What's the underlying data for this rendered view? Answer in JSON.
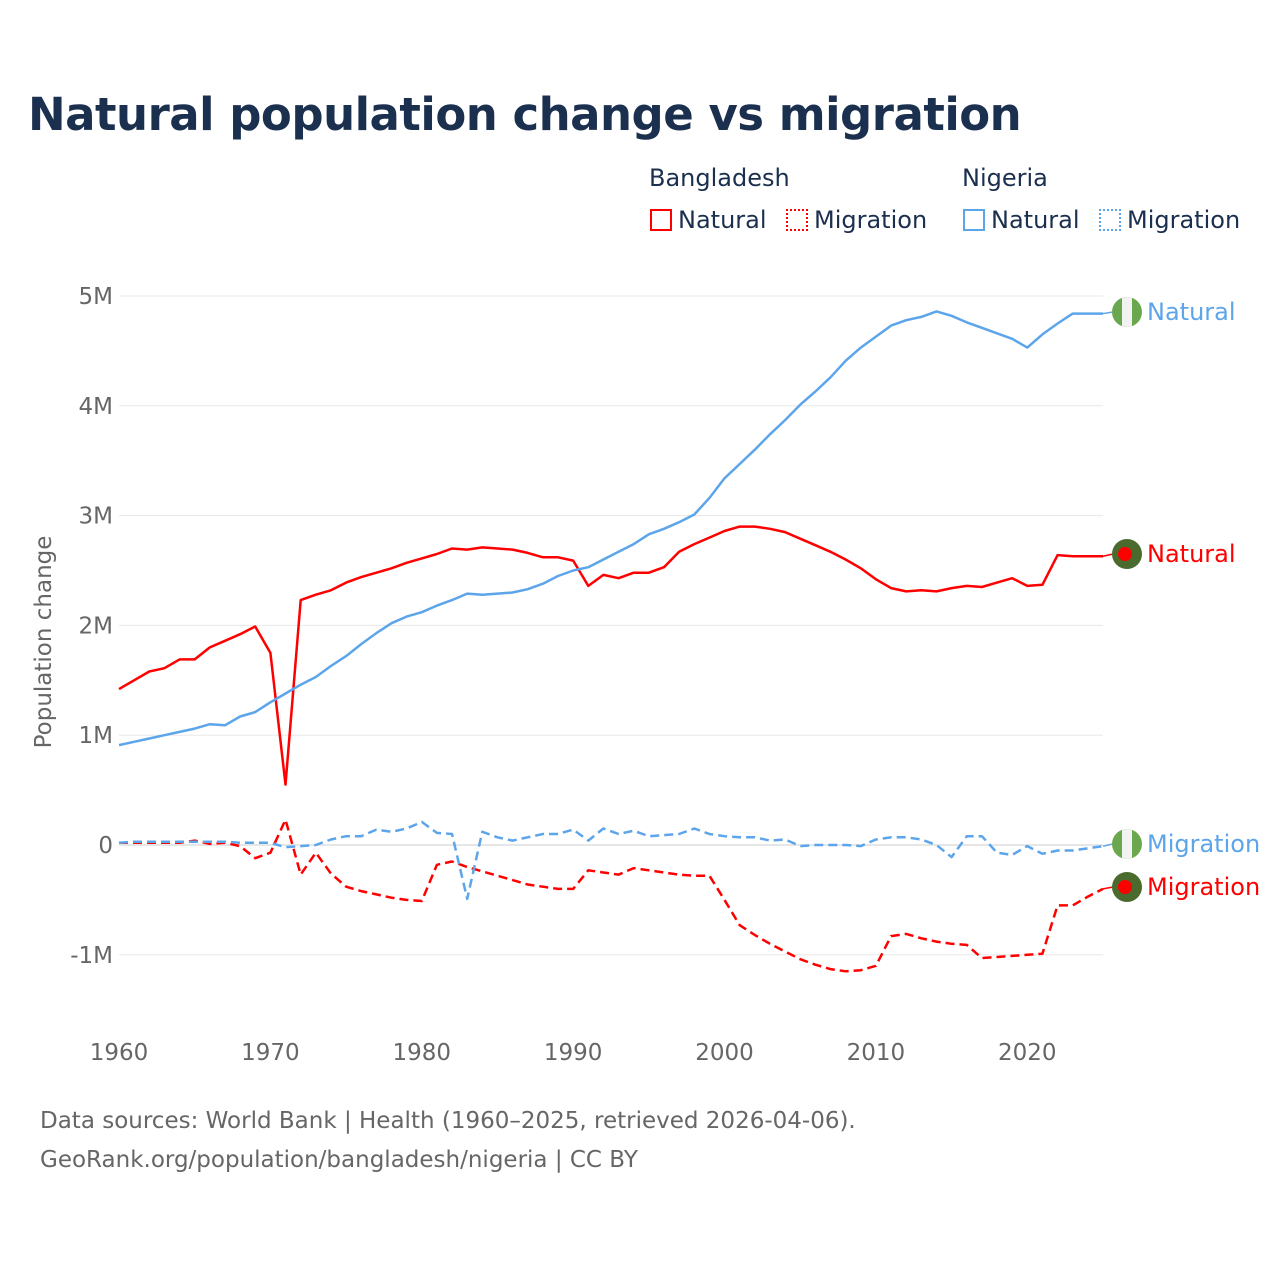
{
  "chart_data": {
    "type": "line",
    "title": "Natural population change vs migration",
    "ylabel": "Population change",
    "xlabel": "",
    "xlim": [
      1960,
      2025
    ],
    "ylim": [
      -1.5,
      5
    ],
    "yticks": [
      {
        "v": 5,
        "label": "5M"
      },
      {
        "v": 4,
        "label": "4M"
      },
      {
        "v": 3,
        "label": "3M"
      },
      {
        "v": 2,
        "label": "2M"
      },
      {
        "v": 1,
        "label": "1M"
      },
      {
        "v": 0,
        "label": "0"
      },
      {
        "v": -1,
        "label": "-1M"
      }
    ],
    "xticks": [
      {
        "v": 1960,
        "label": "1960"
      },
      {
        "v": 1970,
        "label": "1970"
      },
      {
        "v": 1980,
        "label": "1980"
      },
      {
        "v": 1990,
        "label": "1990"
      },
      {
        "v": 2000,
        "label": "2000"
      },
      {
        "v": 2010,
        "label": "2010"
      },
      {
        "v": 2020,
        "label": "2020"
      }
    ],
    "units": "millions",
    "grid": true,
    "legend_placement": "top-right",
    "x_start": 1960,
    "series": [
      {
        "name": "Bangladesh Natural",
        "country": "Bangladesh",
        "kind": "Natural",
        "color": "#ff0000",
        "dash": "solid",
        "end_label": "Natural",
        "flag": "bangladesh",
        "values": [
          1.42,
          1.5,
          1.58,
          1.61,
          1.69,
          1.69,
          1.8,
          1.86,
          1.92,
          1.99,
          1.75,
          0.55,
          2.23,
          2.28,
          2.32,
          2.39,
          2.44,
          2.48,
          2.52,
          2.57,
          2.61,
          2.65,
          2.7,
          2.69,
          2.71,
          2.7,
          2.69,
          2.66,
          2.62,
          2.62,
          2.59,
          2.36,
          2.46,
          2.43,
          2.48,
          2.48,
          2.53,
          2.67,
          2.74,
          2.8,
          2.86,
          2.9,
          2.9,
          2.88,
          2.85,
          2.79,
          2.73,
          2.67,
          2.6,
          2.52,
          2.42,
          2.34,
          2.31,
          2.32,
          2.31,
          2.34,
          2.36,
          2.35,
          2.39,
          2.43,
          2.36,
          2.37,
          2.64,
          2.63,
          2.63,
          2.63
        ]
      },
      {
        "name": "Bangladesh Migration",
        "country": "Bangladesh",
        "kind": "Migration",
        "color": "#ff0000",
        "dash": "dashed",
        "end_label": "Migration",
        "flag": "bangladesh",
        "values": [
          0.02,
          0.02,
          0.02,
          0.02,
          0.02,
          0.04,
          0.01,
          0.02,
          -0.01,
          -0.12,
          -0.07,
          0.23,
          -0.27,
          -0.07,
          -0.26,
          -0.38,
          -0.42,
          -0.45,
          -0.48,
          -0.5,
          -0.51,
          -0.18,
          -0.15,
          -0.2,
          -0.24,
          -0.28,
          -0.32,
          -0.36,
          -0.38,
          -0.4,
          -0.4,
          -0.23,
          -0.25,
          -0.27,
          -0.21,
          -0.23,
          -0.25,
          -0.27,
          -0.28,
          -0.28,
          -0.5,
          -0.73,
          -0.82,
          -0.9,
          -0.97,
          -1.04,
          -1.09,
          -1.13,
          -1.15,
          -1.14,
          -1.1,
          -0.83,
          -0.81,
          -0.85,
          -0.88,
          -0.9,
          -0.91,
          -1.03,
          -1.02,
          -1.01,
          -1.0,
          -0.99,
          -0.55,
          -0.55,
          -0.47,
          -0.4
        ]
      },
      {
        "name": "Nigeria Natural",
        "country": "Nigeria",
        "kind": "Natural",
        "color": "#5da5ea",
        "dash": "solid",
        "end_label": "Natural",
        "flag": "nigeria",
        "values": [
          0.91,
          0.94,
          0.97,
          1.0,
          1.03,
          1.06,
          1.1,
          1.09,
          1.17,
          1.21,
          1.3,
          1.38,
          1.46,
          1.53,
          1.63,
          1.72,
          1.83,
          1.93,
          2.02,
          2.08,
          2.12,
          2.18,
          2.23,
          2.29,
          2.28,
          2.29,
          2.3,
          2.33,
          2.38,
          2.45,
          2.5,
          2.53,
          2.6,
          2.67,
          2.74,
          2.83,
          2.88,
          2.94,
          3.01,
          3.16,
          3.34,
          3.47,
          3.6,
          3.74,
          3.87,
          4.01,
          4.13,
          4.26,
          4.41,
          4.53,
          4.63,
          4.73,
          4.78,
          4.81,
          4.86,
          4.82,
          4.76,
          4.71,
          4.66,
          4.61,
          4.53,
          4.65,
          4.75,
          4.84,
          4.84,
          4.84
        ]
      },
      {
        "name": "Nigeria Migration",
        "country": "Nigeria",
        "kind": "Migration",
        "color": "#5da5ea",
        "dash": "dashed",
        "end_label": "Migration",
        "flag": "nigeria",
        "values": [
          0.02,
          0.03,
          0.03,
          0.03,
          0.03,
          0.03,
          0.03,
          0.03,
          0.02,
          0.02,
          0.02,
          -0.02,
          -0.01,
          0.0,
          0.05,
          0.08,
          0.08,
          0.14,
          0.12,
          0.15,
          0.21,
          0.11,
          0.1,
          -0.49,
          0.12,
          0.07,
          0.04,
          0.07,
          0.1,
          0.1,
          0.14,
          0.04,
          0.15,
          0.1,
          0.13,
          0.08,
          0.09,
          0.1,
          0.15,
          0.1,
          0.08,
          0.07,
          0.07,
          0.04,
          0.05,
          -0.01,
          0.0,
          0.0,
          0.0,
          -0.01,
          0.05,
          0.07,
          0.07,
          0.05,
          0.0,
          -0.11,
          0.08,
          0.08,
          -0.07,
          -0.09,
          -0.01,
          -0.08,
          -0.05,
          -0.05,
          -0.03,
          -0.01
        ]
      }
    ]
  },
  "legend": {
    "groups": [
      {
        "title": "Bangladesh",
        "items": [
          {
            "label": "Natural",
            "color": "#ff0000",
            "style": "solid"
          },
          {
            "label": "Migration",
            "color": "#ff0000",
            "style": "dotted"
          }
        ]
      },
      {
        "title": "Nigeria",
        "items": [
          {
            "label": "Natural",
            "color": "#5da5ea",
            "style": "solid"
          },
          {
            "label": "Migration",
            "color": "#5da5ea",
            "style": "dotted"
          }
        ]
      }
    ]
  },
  "source": {
    "line1": "Data sources: World Bank | Health (1960–2025, retrieved 2026-04-06).",
    "line2": "GeoRank.org/population/bangladesh/nigeria | CC BY"
  }
}
